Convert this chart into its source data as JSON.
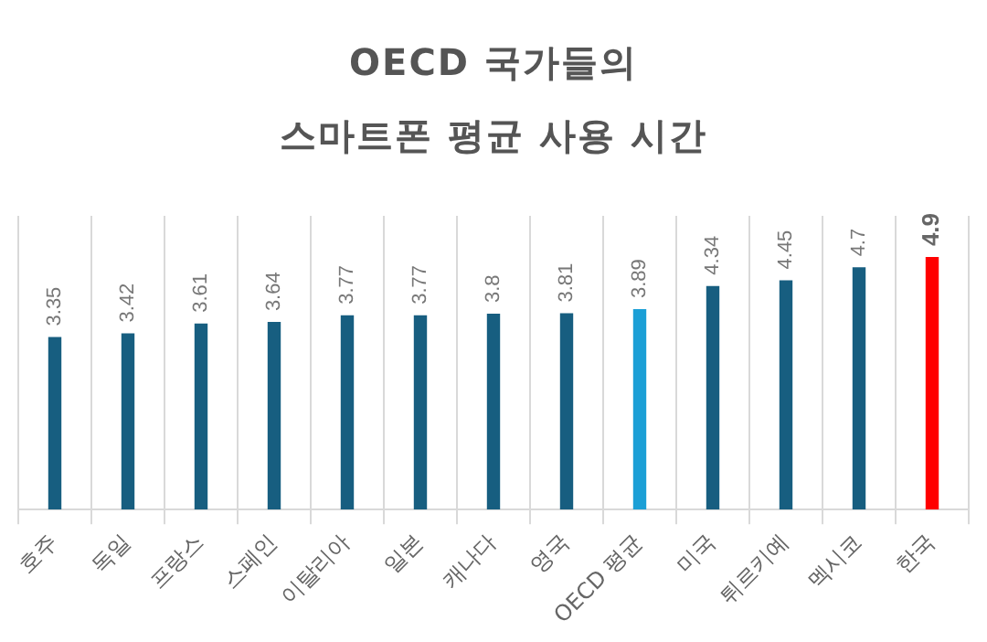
{
  "chart_data": {
    "type": "bar",
    "title": [
      "OECD 국가들의",
      "스마트폰 평균 사용 시간"
    ],
    "categories": [
      "호주",
      "독일",
      "프랑스",
      "스페인",
      "이탈리아",
      "일본",
      "캐나다",
      "영국",
      "OECD 평균",
      "미국",
      "튀르키예",
      "멕시코",
      "한국"
    ],
    "values": [
      3.35,
      3.42,
      3.61,
      3.64,
      3.77,
      3.77,
      3.8,
      3.81,
      3.89,
      4.34,
      4.45,
      4.7,
      4.9
    ],
    "colors": [
      "#175e80",
      "#175e80",
      "#175e80",
      "#175e80",
      "#175e80",
      "#175e80",
      "#175e80",
      "#175e80",
      "#1b9fd6",
      "#175e80",
      "#175e80",
      "#175e80",
      "#ff0000"
    ],
    "ylim": [
      0,
      5.7
    ],
    "tick_labels": "x",
    "grid": "x",
    "data_labels": true
  }
}
